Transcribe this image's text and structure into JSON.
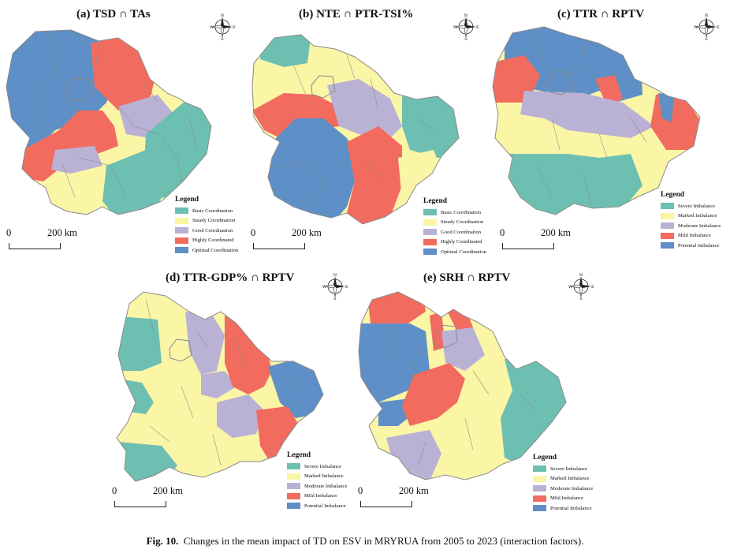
{
  "colors": {
    "c1": "#6dbfb2",
    "c2": "#fbf5a6",
    "c3": "#b9b2d5",
    "c4": "#f26b5f",
    "c5": "#5e8fc6"
  },
  "icons": {
    "compass": "north-arrow-compass-icon"
  },
  "compass_labels": {
    "n": "N",
    "s": "S",
    "w": "W",
    "e": "E"
  },
  "scale": {
    "zero": "0",
    "distance": "200 km"
  },
  "coordination_legend": {
    "title": "Legend",
    "items": [
      "Basic Coordination",
      "Steady Coordination",
      "Good Coordination",
      "Highly Coordinated",
      "Optimal Coordination"
    ]
  },
  "imbalance_legend": {
    "title": "Legend",
    "items": [
      "Severe Imbalance",
      "Marked Imbalance",
      "Moderate Imbalance",
      "Mild Imbalance",
      "Potential Imbalance"
    ]
  },
  "panels": [
    {
      "title": "(a) TSD ∩ TAs"
    },
    {
      "title": "(b) NTE ∩ PTR-TSI%"
    },
    {
      "title": "(c) TTR ∩ RPTV"
    },
    {
      "title": "(d) TTR-GDP% ∩ RPTV"
    },
    {
      "title": "(e) SRH ∩ RPTV"
    }
  ],
  "caption": {
    "label": "Fig. 10.",
    "text": "Changes in the mean impact of TD on ESV in MRYRUA from 2005 to 2023 (interaction factors)."
  }
}
